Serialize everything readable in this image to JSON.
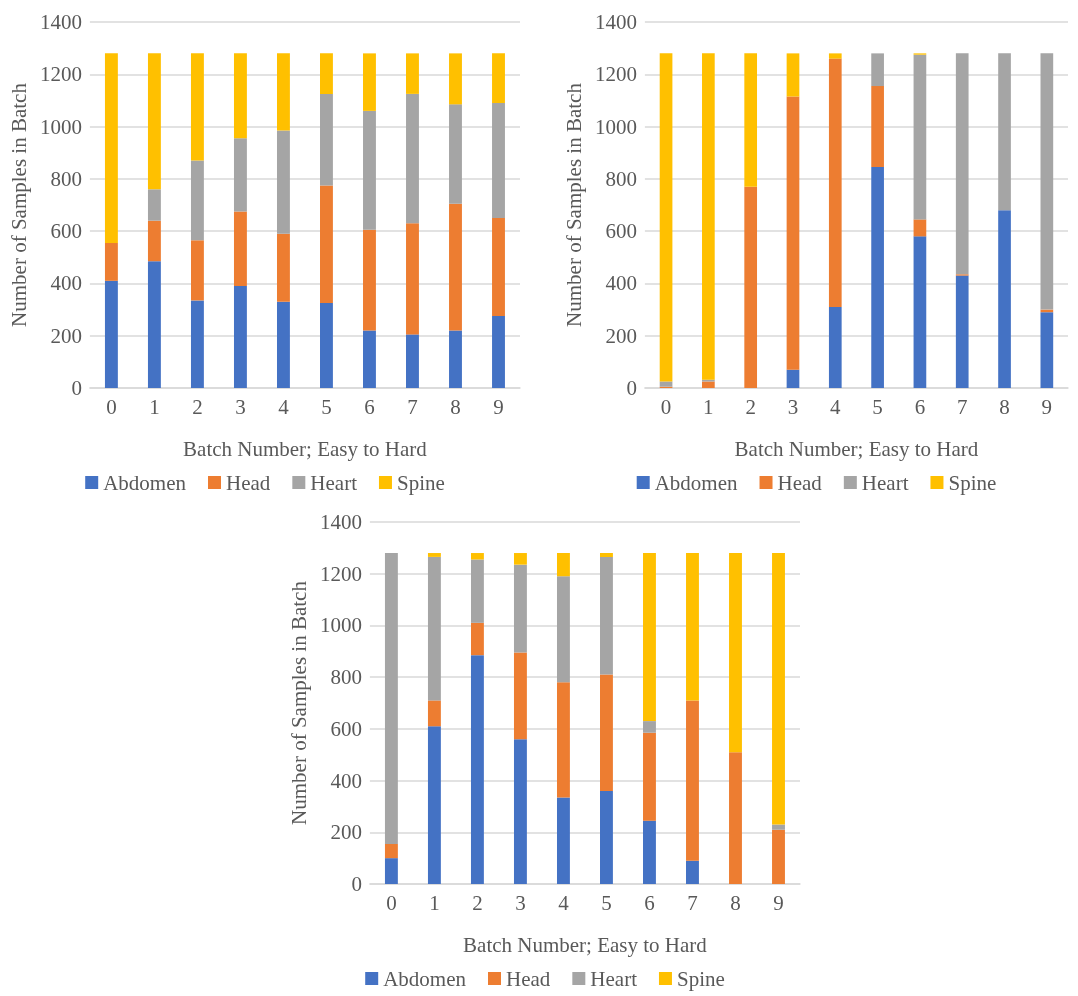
{
  "chart_data": [
    {
      "type": "bar",
      "stacked": true,
      "xlabel": "Batch Number; Easy to Hard",
      "ylabel": "Number of Samples in Batch",
      "categories": [
        "0",
        "1",
        "2",
        "3",
        "4",
        "5",
        "6",
        "7",
        "8",
        "9"
      ],
      "ylim": [
        0,
        1400
      ],
      "yticks": [
        0,
        200,
        400,
        600,
        800,
        1000,
        1200,
        1400
      ],
      "grid": "y",
      "legend": "bottom",
      "series": [
        {
          "name": "Abdomen",
          "color": "#4472c4",
          "values": [
            410,
            485,
            335,
            390,
            330,
            325,
            220,
            205,
            220,
            275
          ]
        },
        {
          "name": "Head",
          "color": "#ed7d31",
          "values": [
            145,
            155,
            230,
            285,
            260,
            450,
            385,
            425,
            485,
            375
          ]
        },
        {
          "name": "Heart",
          "color": "#a5a5a5",
          "values": [
            0,
            120,
            305,
            280,
            395,
            350,
            455,
            495,
            380,
            440
          ]
        },
        {
          "name": "Spine",
          "color": "#ffc000",
          "values": [
            725,
            520,
            410,
            325,
            295,
            155,
            220,
            155,
            195,
            190
          ]
        }
      ]
    },
    {
      "type": "bar",
      "stacked": true,
      "xlabel": "Batch Number; Easy to Hard",
      "ylabel": "Number of Samples in Batch",
      "categories": [
        "0",
        "1",
        "2",
        "3",
        "4",
        "5",
        "6",
        "7",
        "8",
        "9"
      ],
      "ylim": [
        0,
        1400
      ],
      "yticks": [
        0,
        200,
        400,
        600,
        800,
        1000,
        1200,
        1400
      ],
      "grid": "y",
      "legend": "bottom",
      "series": [
        {
          "name": "Abdomen",
          "color": "#4472c4",
          "values": [
            0,
            0,
            0,
            70,
            310,
            845,
            580,
            430,
            680,
            290
          ]
        },
        {
          "name": "Head",
          "color": "#ed7d31",
          "values": [
            5,
            25,
            770,
            1045,
            950,
            310,
            65,
            5,
            0,
            10
          ]
        },
        {
          "name": "Heart",
          "color": "#a5a5a5",
          "values": [
            20,
            7,
            0,
            0,
            0,
            125,
            630,
            845,
            600,
            980
          ]
        },
        {
          "name": "Spine",
          "color": "#ffc000",
          "values": [
            1255,
            1248,
            510,
            165,
            20,
            0,
            5,
            0,
            0,
            0
          ]
        }
      ]
    },
    {
      "type": "bar",
      "stacked": true,
      "xlabel": "Batch Number; Easy to Hard",
      "ylabel": "Number of Samples in Batch",
      "categories": [
        "0",
        "1",
        "2",
        "3",
        "4",
        "5",
        "6",
        "7",
        "8",
        "9"
      ],
      "ylim": [
        0,
        1400
      ],
      "yticks": [
        0,
        200,
        400,
        600,
        800,
        1000,
        1200,
        1400
      ],
      "grid": "y",
      "legend": "bottom",
      "series": [
        {
          "name": "Abdomen",
          "color": "#4472c4",
          "values": [
            100,
            610,
            885,
            560,
            335,
            360,
            245,
            90,
            0,
            0
          ]
        },
        {
          "name": "Head",
          "color": "#ed7d31",
          "values": [
            55,
            100,
            125,
            335,
            445,
            450,
            340,
            620,
            510,
            210
          ]
        },
        {
          "name": "Heart",
          "color": "#a5a5a5",
          "values": [
            1125,
            555,
            245,
            340,
            410,
            455,
            45,
            0,
            0,
            20
          ]
        },
        {
          "name": "Spine",
          "color": "#ffc000",
          "values": [
            0,
            15,
            25,
            45,
            90,
            15,
            650,
            570,
            770,
            1050
          ]
        }
      ]
    }
  ]
}
